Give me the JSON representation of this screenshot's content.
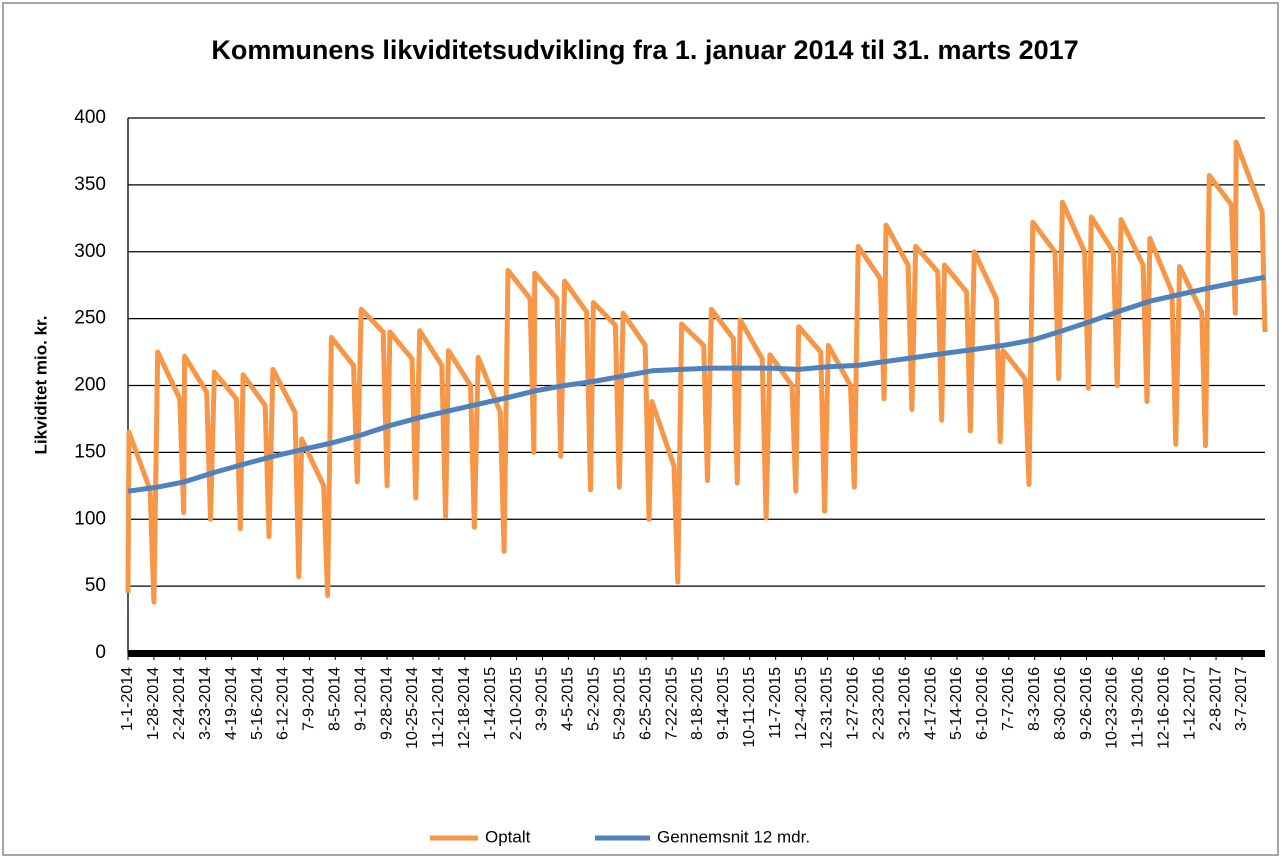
{
  "chart_data": {
    "type": "line",
    "title": "Kommunens likviditetsudvikling fra 1. januar 2014 til 31. marts 2017",
    "ylabel": "Likviditet mio. kr.",
    "ylim": [
      0,
      400
    ],
    "yticks": [
      0,
      50,
      100,
      150,
      200,
      250,
      300,
      350,
      400
    ],
    "grid": true,
    "xlim": [
      "1-1-2014",
      "3-31-2017"
    ],
    "xticks": [
      "1-1-2014",
      "1-28-2014",
      "2-24-2014",
      "3-23-2014",
      "4-19-2014",
      "5-16-2014",
      "6-12-2014",
      "7-9-2014",
      "8-5-2014",
      "9-1-2014",
      "9-28-2014",
      "10-25-2014",
      "11-21-2014",
      "12-18-2014",
      "1-14-2015",
      "2-10-2015",
      "3-9-2015",
      "4-5-2015",
      "5-2-2015",
      "5-29-2015",
      "6-25-2015",
      "7-22-2015",
      "8-18-2015",
      "9-14-2015",
      "10-11-2015",
      "11-7-2015",
      "12-4-2015",
      "12-31-2015",
      "1-27-2016",
      "2-23-2016",
      "3-21-2016",
      "4-17-2016",
      "5-14-2016",
      "6-10-2016",
      "7-7-2016",
      "8-3-2016",
      "8-30-2016",
      "9-26-2016",
      "10-23-2016",
      "11-19-2016",
      "12-16-2016",
      "1-12-2017",
      "2-8-2017",
      "3-7-2017"
    ],
    "legend": "bottom",
    "series": [
      {
        "name": "Optalt",
        "color": "#f79646",
        "x": [
          "1-1-2014",
          "1-2-2014",
          "1-24-2014",
          "1-28-2014",
          "2-1-2014",
          "2-24-2014",
          "2-28-2014",
          "3-1-2014",
          "3-24-2014",
          "3-28-2014",
          "4-1-2014",
          "4-24-2014",
          "4-28-2014",
          "5-1-2014",
          "5-24-2014",
          "5-28-2014",
          "6-1-2014",
          "6-24-2014",
          "6-28-2014",
          "7-1-2014",
          "7-24-2014",
          "7-28-2014",
          "8-1-2014",
          "8-24-2014",
          "8-28-2014",
          "9-1-2014",
          "9-24-2014",
          "9-28-2014",
          "10-1-2014",
          "10-24-2014",
          "10-28-2014",
          "11-1-2014",
          "11-24-2014",
          "11-28-2014",
          "12-1-2014",
          "12-24-2014",
          "12-28-2014",
          "1-1-2015",
          "1-24-2015",
          "1-28-2015",
          "2-1-2015",
          "2-24-2015",
          "2-28-2015",
          "3-1-2015",
          "3-24-2015",
          "3-28-2015",
          "4-1-2015",
          "4-24-2015",
          "4-28-2015",
          "5-1-2015",
          "5-24-2015",
          "5-28-2015",
          "6-1-2015",
          "6-24-2015",
          "6-28-2015",
          "7-1-2015",
          "7-24-2015",
          "7-28-2015",
          "8-1-2015",
          "8-24-2015",
          "8-28-2015",
          "9-1-2015",
          "9-24-2015",
          "9-28-2015",
          "10-1-2015",
          "10-24-2015",
          "10-28-2015",
          "11-1-2015",
          "11-24-2015",
          "11-28-2015",
          "12-1-2015",
          "12-24-2015",
          "12-28-2015",
          "1-1-2016",
          "1-24-2016",
          "1-28-2016",
          "2-1-2016",
          "2-24-2016",
          "2-28-2016",
          "3-1-2016",
          "3-24-2016",
          "3-28-2016",
          "4-1-2016",
          "4-24-2016",
          "4-28-2016",
          "5-1-2016",
          "5-24-2016",
          "5-28-2016",
          "6-1-2016",
          "6-24-2016",
          "6-28-2016",
          "7-1-2016",
          "7-24-2016",
          "7-28-2016",
          "8-1-2016",
          "8-24-2016",
          "8-28-2016",
          "9-1-2016",
          "9-24-2016",
          "9-28-2016",
          "10-1-2016",
          "10-24-2016",
          "10-28-2016",
          "11-1-2016",
          "11-24-2016",
          "11-28-2016",
          "12-1-2016",
          "12-24-2016",
          "12-28-2016",
          "1-1-2017",
          "1-24-2017",
          "1-28-2017",
          "2-1-2017",
          "2-24-2017",
          "2-28-2017",
          "3-1-2017",
          "3-28-2017",
          "3-31-2017"
        ],
        "values": [
          45,
          165,
          122,
          38,
          225,
          190,
          105,
          222,
          195,
          100,
          210,
          190,
          93,
          208,
          185,
          87,
          212,
          180,
          57,
          160,
          125,
          43,
          236,
          215,
          128,
          257,
          240,
          125,
          240,
          220,
          116,
          241,
          215,
          102,
          226,
          200,
          94,
          221,
          180,
          76,
          286,
          265,
          150,
          284,
          265,
          147,
          278,
          255,
          122,
          262,
          245,
          124,
          254,
          230,
          100,
          188,
          140,
          53,
          246,
          230,
          129,
          257,
          235,
          127,
          249,
          220,
          101,
          223,
          200,
          121,
          244,
          225,
          106,
          230,
          200,
          124,
          304,
          280,
          190,
          320,
          290,
          182,
          304,
          285,
          174,
          290,
          270,
          166,
          300,
          265,
          158,
          226,
          205,
          126,
          322,
          300,
          205,
          337,
          300,
          198,
          326,
          300,
          200,
          324,
          290,
          188,
          310,
          270,
          156,
          289,
          255,
          155,
          357,
          335,
          254,
          382,
          330,
          240
        ]
      },
      {
        "name": "Gennemsnit 12 mdr.",
        "color": "#4f81bd",
        "x": [
          "1-1-2014",
          "2-1-2014",
          "3-1-2014",
          "4-1-2014",
          "5-1-2014",
          "6-1-2014",
          "7-1-2014",
          "8-1-2014",
          "9-1-2014",
          "10-1-2014",
          "11-1-2014",
          "12-1-2014",
          "1-1-2015",
          "2-1-2015",
          "3-1-2015",
          "4-1-2015",
          "5-1-2015",
          "6-1-2015",
          "7-1-2015",
          "8-1-2015",
          "9-1-2015",
          "10-1-2015",
          "11-1-2015",
          "12-1-2015",
          "1-1-2016",
          "2-1-2016",
          "3-1-2016",
          "4-1-2016",
          "5-1-2016",
          "6-1-2016",
          "7-1-2016",
          "8-1-2016",
          "9-1-2016",
          "10-1-2016",
          "11-1-2016",
          "12-1-2016",
          "1-1-2017",
          "2-1-2017",
          "3-1-2017",
          "3-31-2017"
        ],
        "values": [
          121,
          124,
          128,
          135,
          141,
          147,
          152,
          157,
          163,
          170,
          176,
          181,
          186,
          191,
          196,
          200,
          203,
          207,
          211,
          212,
          213,
          213,
          213,
          212,
          214,
          215,
          218,
          221,
          224,
          227,
          230,
          234,
          241,
          248,
          256,
          263,
          268,
          273,
          277,
          281
        ]
      }
    ]
  }
}
